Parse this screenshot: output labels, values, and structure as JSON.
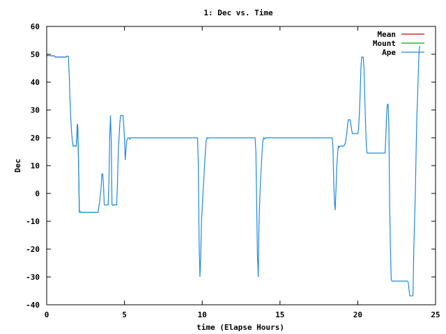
{
  "chart_data": {
    "type": "line",
    "title": "1: Dec vs. Time",
    "xlabel": "time (Elapse Hours)",
    "ylabel": "Dec",
    "xlim": [
      0,
      25
    ],
    "ylim": [
      -40,
      60
    ],
    "x_ticks": [
      0,
      5,
      10,
      15,
      20,
      25
    ],
    "y_ticks": [
      -40,
      -30,
      -20,
      -10,
      0,
      10,
      20,
      30,
      40,
      50,
      60
    ],
    "grid": false,
    "legend_position": "top-right",
    "series": [
      {
        "name": "Mean",
        "color": "#cc0000",
        "x": [
          0.0,
          0.5,
          0.55,
          1.25,
          1.3,
          1.35
        ],
        "y": [
          49.6,
          49.4,
          49.0,
          49.0,
          49.3,
          49.3
        ]
      },
      {
        "name": "Mount",
        "color": "#00aa00",
        "x": [
          1.8,
          1.9,
          1.95,
          1.97,
          2.0,
          2.05,
          2.1,
          2.15,
          2.2,
          2.3,
          3.3
        ],
        "y": [
          17.0,
          17.0,
          22.0,
          25.0,
          24.0,
          10.0,
          -6.7,
          -6.5,
          -6.8,
          -6.8,
          -6.8
        ]
      },
      {
        "name": "Ape",
        "color": "#1e88e5",
        "x": [
          0.0,
          0.5,
          0.55,
          1.25,
          1.3,
          1.35,
          1.4,
          1.45,
          1.5,
          1.55,
          1.6,
          1.65,
          1.7,
          1.75,
          1.8,
          1.9,
          1.95,
          1.97,
          2.0,
          2.05,
          2.1,
          2.15,
          2.2,
          2.3,
          3.3,
          3.4,
          3.5,
          3.55,
          3.6,
          3.65,
          3.7,
          3.75,
          3.85,
          3.9,
          3.95,
          4.0,
          4.05,
          4.1,
          4.15,
          4.2,
          4.25,
          4.3,
          4.35,
          4.4,
          4.5,
          4.55,
          4.6,
          4.65,
          4.7,
          4.75,
          4.8,
          4.85,
          4.9,
          4.95,
          5.0,
          5.05,
          5.1,
          5.15,
          5.2,
          5.25,
          5.3,
          5.35,
          5.4,
          5.5,
          9.7,
          9.75,
          9.8,
          9.85,
          9.9,
          9.95,
          10.0,
          10.05,
          10.1,
          10.15,
          10.2,
          10.25,
          10.3,
          10.35,
          10.4,
          10.5,
          13.4,
          13.45,
          13.5,
          13.55,
          13.6,
          13.65,
          13.7,
          13.75,
          13.8,
          13.85,
          13.9,
          13.95,
          14.0,
          14.1,
          18.35,
          18.4,
          18.45,
          18.5,
          18.55,
          18.6,
          18.65,
          18.7,
          18.75,
          18.8,
          18.85,
          18.9,
          19.1,
          19.2,
          19.25,
          19.3,
          19.35,
          19.4,
          19.45,
          19.5,
          19.55,
          19.6,
          19.65,
          19.7,
          19.75,
          20.0,
          20.05,
          20.1,
          20.15,
          20.2,
          20.25,
          20.3,
          20.35,
          20.4,
          20.45,
          20.5,
          20.55,
          20.6,
          21.7,
          21.75,
          21.8,
          21.85,
          21.9,
          21.95,
          22.0,
          22.05,
          22.1,
          22.15,
          22.2,
          23.15,
          23.2,
          23.25,
          23.3,
          23.35,
          23.5,
          23.55,
          23.6,
          23.65,
          23.7,
          23.75,
          23.8,
          23.85,
          23.9,
          23.95,
          24.0
        ],
        "y": [
          49.6,
          49.4,
          49.0,
          49.0,
          49.3,
          49.3,
          49.3,
          42.0,
          33.0,
          27.0,
          22.0,
          19.0,
          17.0,
          17.2,
          17.0,
          17.0,
          22.0,
          25.0,
          24.0,
          10.0,
          -6.7,
          -6.5,
          -6.8,
          -6.8,
          -6.8,
          -3.0,
          2.0,
          7.0,
          7.0,
          3.0,
          -4.0,
          -4.2,
          -4.2,
          -4.0,
          -4.1,
          4.0,
          20.0,
          28.0,
          19.0,
          -4.0,
          -4.3,
          -4.0,
          -4.2,
          -4.0,
          -4.1,
          4.0,
          15.0,
          20.0,
          25.0,
          28.0,
          28.0,
          28.0,
          28.0,
          25.0,
          20.0,
          12.0,
          16.0,
          19.0,
          19.8,
          20.0,
          20.0,
          19.5,
          20.0,
          20.0,
          20.0,
          10.0,
          -17.0,
          -30.0,
          -23.0,
          -10.0,
          -5.0,
          0.0,
          5.0,
          10.0,
          15.0,
          19.0,
          20.0,
          19.7,
          20.0,
          20.0,
          20.0,
          15.0,
          -3.0,
          -22.0,
          -30.0,
          -10.0,
          -2.0,
          5.0,
          10.0,
          15.0,
          19.0,
          20.0,
          19.6,
          20.0,
          20.0,
          17.0,
          5.0,
          -3.0,
          -6.0,
          2.0,
          10.0,
          14.0,
          17.0,
          16.5,
          17.0,
          17.0,
          17.0,
          18.0,
          20.0,
          22.0,
          25.0,
          26.5,
          26.5,
          26.5,
          25.0,
          23.0,
          21.5,
          21.5,
          21.5,
          21.5,
          23.0,
          28.0,
          35.0,
          45.0,
          49.0,
          49.0,
          49.0,
          45.0,
          35.0,
          25.0,
          17.0,
          14.5,
          14.5,
          14.5,
          20.0,
          28.0,
          32.0,
          32.0,
          25.0,
          -5.0,
          -20.0,
          -31.0,
          -31.5,
          -31.5,
          -31.5,
          -32.0,
          -35.0,
          -36.8,
          -36.8,
          -36.8,
          -20.0,
          -10.0,
          0.0,
          15.0,
          28.0,
          35.0,
          45.0,
          52.0,
          53.0
        ]
      }
    ]
  }
}
